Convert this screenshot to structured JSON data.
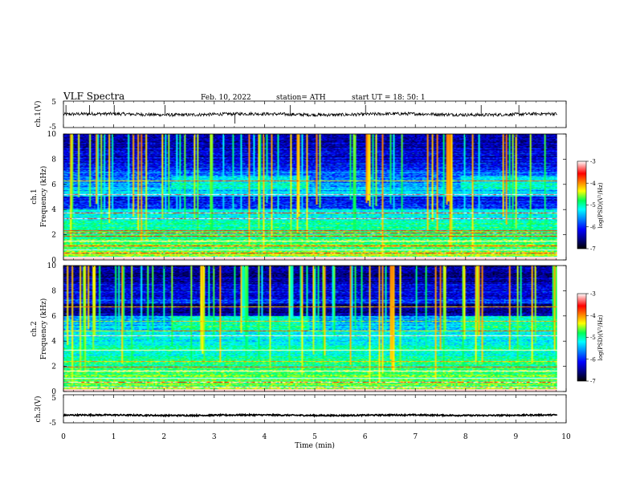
{
  "header": {
    "title": "VLF  Spectra",
    "date": "Feb. 10, 2022",
    "station": "station= ATH",
    "start": "start  UT  =    18: 50: 1"
  },
  "chart_data": [
    {
      "type": "line",
      "id": "ch1-waveform",
      "ylabel": "ch.1(V)",
      "ylim": [
        -5,
        5
      ],
      "yticks": [
        "5",
        "-5"
      ],
      "xlim": [
        0,
        10
      ],
      "data_end_min": 9.82,
      "baseline_v": 0.0,
      "noise_amplitude_v": 0.6,
      "spikes_min": [
        0.05,
        0.52,
        1.01,
        2.02,
        3.41,
        4.51,
        6.01,
        8.31,
        9.06
      ],
      "line_color": "#000000"
    },
    {
      "type": "heatmap",
      "id": "ch1-spectrogram",
      "ylabel": "ch.1\nFrequency  (kHz)",
      "ylim": [
        0,
        10
      ],
      "yticks": [
        "0",
        "2",
        "4",
        "6",
        "8",
        "10"
      ],
      "xlim": [
        0,
        10
      ],
      "data_end_min": 9.82,
      "dark_band_khz": [
        4.0,
        5.0
      ],
      "strong_lines_khz": [
        0.2,
        0.5,
        0.75,
        1.1,
        1.5,
        1.85,
        2.1,
        2.3,
        3.3,
        3.75,
        5.2,
        6.3
      ],
      "bright_block_khz": [
        5.7,
        6.7
      ],
      "bright_block_min": [
        [
          2.15,
          4.9
        ],
        [
          7.9,
          9.82
        ]
      ],
      "colorbar": {
        "label": "log(PSD)(V²/Hz)",
        "ticks": [
          "-3",
          "-4",
          "-5",
          "-6",
          "-7"
        ],
        "range": [
          -7,
          -3
        ]
      }
    },
    {
      "type": "heatmap",
      "id": "ch2-spectrogram",
      "ylabel": "ch.2\nFrequency  (kHz)",
      "ylim": [
        0,
        10
      ],
      "yticks": [
        "0",
        "2",
        "4",
        "6",
        "8",
        "10"
      ],
      "xlim": [
        0,
        10
      ],
      "data_end_min": 9.82,
      "dark_band_khz": [
        6.0,
        7.0
      ],
      "strong_lines_khz": [
        0.3,
        0.7,
        1.0,
        1.6,
        1.9,
        2.4,
        3.3,
        4.4,
        4.8,
        5.6,
        6.7
      ],
      "bright_block_khz": [
        4.8,
        6.0
      ],
      "bright_block_min": [
        [
          2.15,
          4.9
        ],
        [
          7.9,
          9.82
        ]
      ],
      "colorbar": {
        "label": "log(PSD)(V²/Hz)",
        "ticks": [
          "-3",
          "-4",
          "-5",
          "-6",
          "-7"
        ],
        "range": [
          -7,
          -3
        ]
      }
    },
    {
      "type": "line",
      "id": "ch3-waveform",
      "ylabel": "ch.3(V)",
      "ylim": [
        -5,
        5
      ],
      "yticks": [
        "5",
        "-5"
      ],
      "xlim": [
        0,
        10
      ],
      "data_end_min": 9.82,
      "baseline_v": -2.3,
      "noise_amplitude_v": 0.25,
      "line_color": "#000000"
    }
  ],
  "xaxis": {
    "label": "Time  (min)",
    "ticks": [
      "0",
      "1",
      "2",
      "3",
      "4",
      "5",
      "6",
      "7",
      "8",
      "9",
      "10"
    ]
  },
  "colormap": [
    "#000000",
    "#00007a",
    "#0000ff",
    "#0090ff",
    "#00ffff",
    "#00ff55",
    "#ffff00",
    "#ff8000",
    "#ff0000",
    "#ffffff"
  ]
}
